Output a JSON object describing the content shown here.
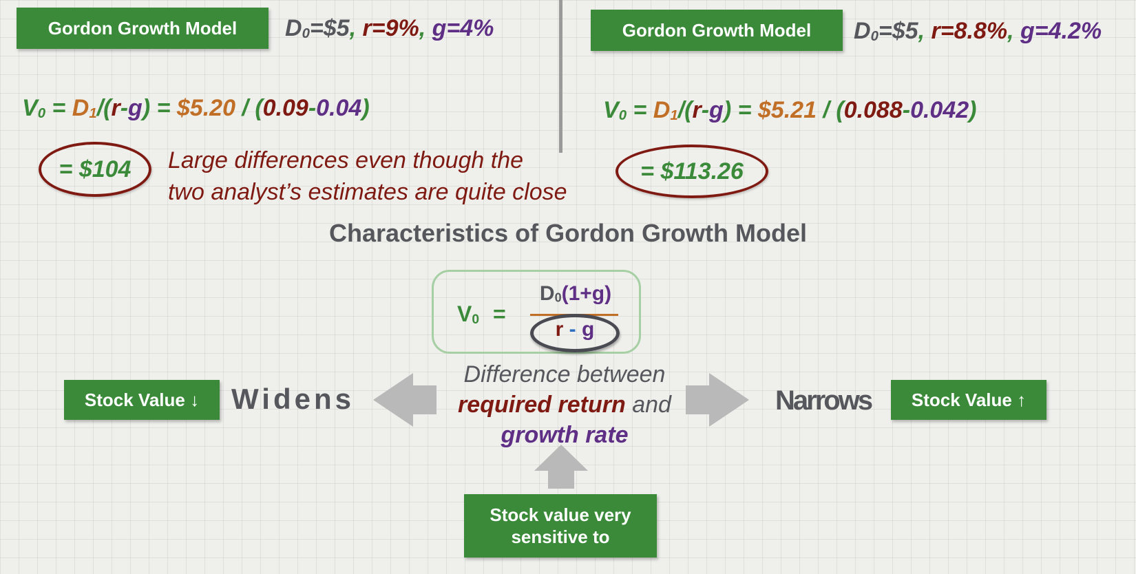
{
  "left_panel": {
    "label": "Gordon Growth Model",
    "params": {
      "d_base": "D",
      "d_sub": "0",
      "d_value": "=$5",
      "sep1": ", ",
      "r": "r=9%",
      "sep2": ", ",
      "g": "g=4%"
    },
    "formula": {
      "v": "V",
      "v_sub": "0",
      "eq1": " = ",
      "d": "D",
      "d_sub": "1",
      "slash_open": "/(",
      "r": "r",
      "dash": "-",
      "g": "g",
      "close": ")",
      "eq2": " = ",
      "d1_value": "$5.20",
      "div": " / ",
      "open": "(",
      "r_value": "0.09",
      "minus": "-",
      "g_value": "0.04",
      "close2": ")"
    },
    "result": "= $104"
  },
  "right_panel": {
    "label": "Gordon Growth Model",
    "params": {
      "d_base": "D",
      "d_sub": "0",
      "d_value": "=$5",
      "sep1": ", ",
      "r": "r=8.8%",
      "sep2": ", ",
      "g": "g=4.2%"
    },
    "formula": {
      "v": "V",
      "v_sub": "0",
      "eq1": " = ",
      "d": "D",
      "d_sub": "1",
      "slash_open": "/(",
      "r": "r",
      "dash": "-",
      "g": "g",
      "close": ")",
      "eq2": " = ",
      "d1_value": "$5.21",
      "div": " / ",
      "open": "(",
      "r_value": "0.088",
      "minus": "-",
      "g_value": "0.042",
      "close2": ")"
    },
    "result": "= $113.26"
  },
  "note": {
    "line1": "Large differences even though the",
    "line2": "two analyst’s estimates are quite close"
  },
  "heading": "Characteristics of Gordon Growth Model",
  "main_formula": {
    "v": "V",
    "v_sub": "0",
    "eq": "=",
    "num_d": "D",
    "num_sub": "0",
    "num_rest": "(1+g)",
    "den_r": "r",
    "den_minus": "-",
    "den_g": "g"
  },
  "left_side": {
    "box": "Stock Value ↓",
    "word": "Widens"
  },
  "right_side": {
    "word": "Narrows",
    "box": "Stock Value ↑"
  },
  "center": {
    "line1": "Difference between",
    "required": "required return",
    "and": " and",
    "growth": "growth rate"
  },
  "bottom_box": {
    "line1": "Stock value very",
    "line2": "sensitive to"
  },
  "colors": {
    "green": "#3a8a3a",
    "red": "#7f1a12",
    "purple": "#5e2f85",
    "orange": "#c16f26",
    "grey": "#56575c",
    "blue": "#2f6fbf",
    "arrow_grey": "#b9b9b9"
  }
}
